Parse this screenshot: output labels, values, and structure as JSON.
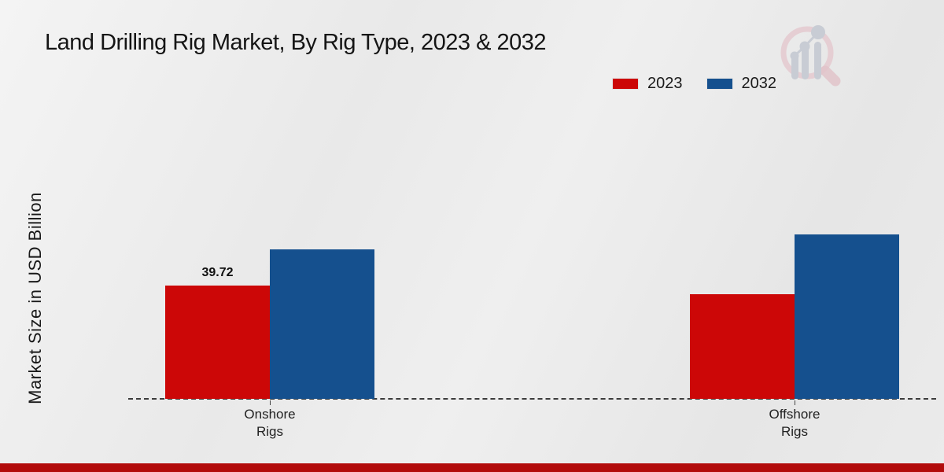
{
  "page": {
    "title": "Land Drilling Rig Market, By Rig Type, 2023 & 2032"
  },
  "chart_data": {
    "type": "bar",
    "title": "Land Drilling Rig Market, By Rig Type, 2023 & 2032",
    "xlabel": "",
    "ylabel": "Market Size in USD Billion",
    "categories": [
      "Onshore Rigs",
      "Offshore Rigs"
    ],
    "series": [
      {
        "name": "2023",
        "color": "#cc0707",
        "values": [
          39.72,
          36.7
        ],
        "labels": [
          "39.72",
          ""
        ]
      },
      {
        "name": "2032",
        "color": "#15508e",
        "values": [
          52.4,
          57.7
        ],
        "labels": [
          "",
          ""
        ]
      }
    ],
    "ylim": [
      0,
      60
    ],
    "grid": false,
    "value_axis_ticks_visible": false,
    "legend_position": "top-right",
    "baseline_style": "dashed"
  },
  "icons": {
    "brand_logo": "magnifier-bar-chart-logo"
  },
  "colors": {
    "series_2023": "#cc0707",
    "series_2032": "#15508e",
    "footer_bar": "#b20b0b",
    "axis": "#3c3c3c",
    "logo_pink": "#e4c9cf",
    "logo_grey": "#c8ccd4"
  }
}
